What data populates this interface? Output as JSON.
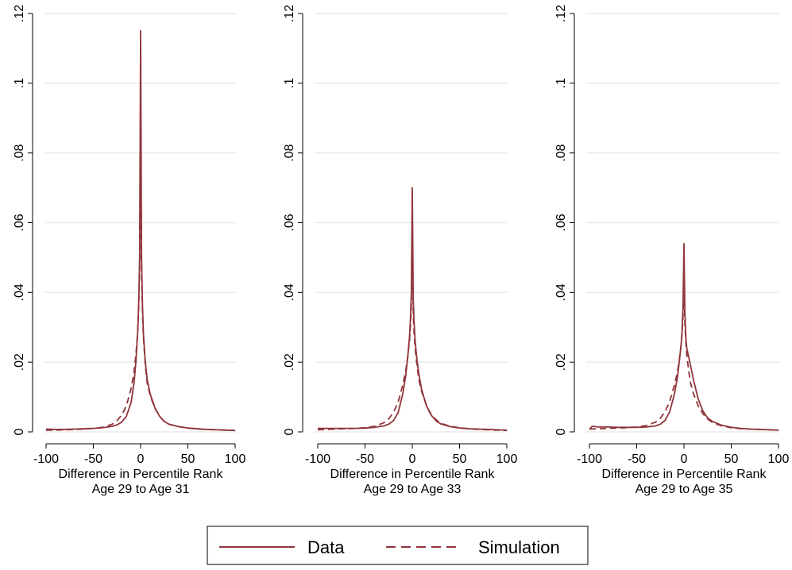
{
  "colors": {
    "series": "#90353B",
    "grid": "#EAEAEA",
    "axis": "#000000",
    "background": "#FFFFFF"
  },
  "legend": {
    "position": "bottom",
    "entries": [
      {
        "label": "Data",
        "style": "solid"
      },
      {
        "label": "Simulation",
        "style": "dashed"
      }
    ]
  },
  "chart_data": [
    {
      "type": "line",
      "xlabel": "Difference in Percentile Rank",
      "xlabel2": "Age 29 to Age 31",
      "ylabel": "",
      "xlim": [
        -100,
        100
      ],
      "ylim": [
        0,
        0.12
      ],
      "xticks": [
        -100,
        -50,
        0,
        50,
        100
      ],
      "xtick_labels": [
        "-100",
        "-50",
        "0",
        "50",
        "100"
      ],
      "yticks": [
        0,
        0.02,
        0.04,
        0.06,
        0.08,
        0.1,
        0.12
      ],
      "ytick_labels": [
        "0",
        ".02",
        ".04",
        ".06",
        ".08",
        ".1",
        ".12"
      ],
      "grid": true,
      "series": [
        {
          "name": "Data",
          "style": "solid",
          "x": [
            -100,
            -90,
            -80,
            -70,
            -60,
            -50,
            -40,
            -30,
            -25,
            -20,
            -15,
            -10,
            -7,
            -5,
            -3,
            -2,
            -1,
            0,
            1,
            2,
            3,
            5,
            7,
            10,
            15,
            20,
            25,
            30,
            40,
            50,
            60,
            70,
            80,
            90,
            100
          ],
          "y": [
            0.0008,
            0.0007,
            0.0007,
            0.0008,
            0.0009,
            0.001,
            0.0012,
            0.0016,
            0.002,
            0.0028,
            0.0045,
            0.0085,
            0.014,
            0.02,
            0.029,
            0.037,
            0.05,
            0.115,
            0.05,
            0.036,
            0.028,
            0.02,
            0.015,
            0.011,
            0.007,
            0.0045,
            0.003,
            0.0022,
            0.0015,
            0.0011,
            0.0009,
            0.0007,
            0.0006,
            0.0005,
            0.0004
          ]
        },
        {
          "name": "Simulation",
          "style": "dashed",
          "x": [
            -100,
            -90,
            -80,
            -70,
            -60,
            -50,
            -40,
            -30,
            -25,
            -20,
            -15,
            -10,
            -7,
            -5,
            -3,
            -2,
            -1,
            0,
            1,
            2,
            3,
            5,
            7,
            10,
            15,
            20,
            25,
            30,
            40,
            50,
            60,
            70,
            80,
            90,
            100
          ],
          "y": [
            0.0005,
            0.0005,
            0.0006,
            0.0007,
            0.0008,
            0.001,
            0.0013,
            0.0022,
            0.0032,
            0.0048,
            0.0075,
            0.0125,
            0.017,
            0.022,
            0.029,
            0.036,
            0.048,
            0.09,
            0.046,
            0.034,
            0.027,
            0.019,
            0.014,
            0.0105,
            0.0068,
            0.0045,
            0.003,
            0.0022,
            0.0015,
            0.0011,
            0.0008,
            0.0007,
            0.0006,
            0.0005,
            0.0004
          ]
        }
      ]
    },
    {
      "type": "line",
      "xlabel": "Difference in Percentile Rank",
      "xlabel2": "Age 29 to Age 33",
      "ylabel": "",
      "xlim": [
        -100,
        100
      ],
      "ylim": [
        0,
        0.12
      ],
      "xticks": [
        -100,
        -50,
        0,
        50,
        100
      ],
      "xtick_labels": [
        "-100",
        "-50",
        "0",
        "50",
        "100"
      ],
      "yticks": [
        0,
        0.02,
        0.04,
        0.06,
        0.08,
        0.1,
        0.12
      ],
      "ytick_labels": [
        "0",
        ".02",
        ".04",
        ".06",
        ".08",
        ".1",
        ".12"
      ],
      "grid": true,
      "series": [
        {
          "name": "Data",
          "style": "solid",
          "x": [
            -100,
            -90,
            -80,
            -70,
            -60,
            -50,
            -40,
            -30,
            -25,
            -20,
            -15,
            -10,
            -7,
            -5,
            -3,
            -2,
            -1,
            0,
            1,
            2,
            3,
            5,
            7,
            10,
            15,
            20,
            25,
            30,
            40,
            50,
            60,
            70,
            80,
            90,
            100
          ],
          "y": [
            0.001,
            0.001,
            0.001,
            0.001,
            0.001,
            0.0011,
            0.0013,
            0.0017,
            0.0022,
            0.0032,
            0.0055,
            0.011,
            0.016,
            0.021,
            0.027,
            0.032,
            0.04,
            0.07,
            0.038,
            0.031,
            0.026,
            0.0205,
            0.0165,
            0.012,
            0.0075,
            0.0048,
            0.0032,
            0.0023,
            0.0015,
            0.0011,
            0.0009,
            0.0008,
            0.0007,
            0.0006,
            0.0005
          ]
        },
        {
          "name": "Simulation",
          "style": "dashed",
          "x": [
            -100,
            -90,
            -80,
            -70,
            -60,
            -50,
            -40,
            -30,
            -25,
            -20,
            -15,
            -10,
            -7,
            -5,
            -3,
            -2,
            -1,
            0,
            1,
            2,
            3,
            5,
            7,
            10,
            15,
            20,
            25,
            30,
            40,
            50,
            60,
            70,
            80,
            90,
            100
          ],
          "y": [
            0.0006,
            0.0007,
            0.0008,
            0.0009,
            0.001,
            0.0012,
            0.0016,
            0.0026,
            0.0037,
            0.0055,
            0.0085,
            0.0135,
            0.0175,
            0.021,
            0.026,
            0.03,
            0.036,
            0.056,
            0.034,
            0.028,
            0.024,
            0.019,
            0.015,
            0.0115,
            0.0075,
            0.005,
            0.0035,
            0.0025,
            0.0016,
            0.0012,
            0.0009,
            0.0007,
            0.0006,
            0.0005,
            0.0004
          ]
        }
      ]
    },
    {
      "type": "line",
      "xlabel": "Difference in Percentile Rank",
      "xlabel2": "Age 29 to Age 35",
      "ylabel": "",
      "xlim": [
        -100,
        100
      ],
      "ylim": [
        0,
        0.12
      ],
      "xticks": [
        -100,
        -50,
        0,
        50,
        100
      ],
      "xtick_labels": [
        "-100",
        "-50",
        "0",
        "50",
        "100"
      ],
      "yticks": [
        0,
        0.02,
        0.04,
        0.06,
        0.08,
        0.1,
        0.12
      ],
      "ytick_labels": [
        "0",
        ".02",
        ".04",
        ".06",
        ".08",
        ".1",
        ".12"
      ],
      "grid": true,
      "series": [
        {
          "name": "Data",
          "style": "solid",
          "x": [
            -100,
            -97,
            -90,
            -80,
            -70,
            -60,
            -50,
            -40,
            -30,
            -25,
            -20,
            -15,
            -10,
            -7,
            -5,
            -3,
            -2,
            -1,
            0,
            1,
            2,
            3,
            5,
            7,
            10,
            15,
            20,
            25,
            30,
            40,
            50,
            60,
            70,
            80,
            90,
            100
          ],
          "y": [
            0.0008,
            0.0016,
            0.0014,
            0.0014,
            0.0013,
            0.0013,
            0.0013,
            0.0014,
            0.0017,
            0.0022,
            0.0033,
            0.0058,
            0.011,
            0.0155,
            0.02,
            0.025,
            0.029,
            0.036,
            0.054,
            0.034,
            0.027,
            0.024,
            0.0215,
            0.019,
            0.015,
            0.0095,
            0.006,
            0.004,
            0.003,
            0.0019,
            0.0013,
            0.001,
            0.0008,
            0.0007,
            0.0006,
            0.0005
          ]
        },
        {
          "name": "Simulation",
          "style": "dashed",
          "x": [
            -100,
            -90,
            -80,
            -70,
            -60,
            -50,
            -40,
            -30,
            -25,
            -20,
            -15,
            -10,
            -7,
            -5,
            -3,
            -2,
            -1,
            0,
            1,
            2,
            3,
            5,
            7,
            10,
            15,
            20,
            25,
            30,
            40,
            50,
            60,
            70,
            80,
            90,
            100
          ],
          "y": [
            0.0008,
            0.0009,
            0.001,
            0.0011,
            0.0012,
            0.0014,
            0.0018,
            0.0028,
            0.0039,
            0.0058,
            0.0088,
            0.0135,
            0.017,
            0.0205,
            0.025,
            0.028,
            0.033,
            0.0425,
            0.031,
            0.026,
            0.022,
            0.0175,
            0.014,
            0.011,
            0.0075,
            0.0052,
            0.0037,
            0.0027,
            0.0017,
            0.0012,
            0.0009,
            0.0008,
            0.0007,
            0.0006,
            0.0005
          ]
        }
      ]
    }
  ]
}
